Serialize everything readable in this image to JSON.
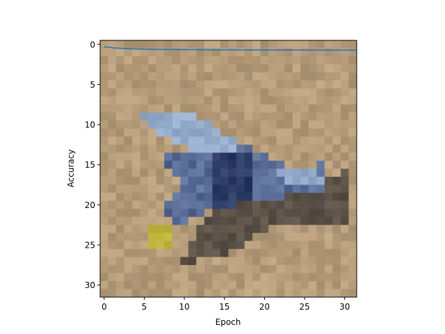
{
  "chart_data": {
    "type": "line",
    "xlabel": "Epoch",
    "ylabel": "Accuracy",
    "xlim": [
      -0.5,
      31.5
    ],
    "ylim": [
      31.5,
      -0.5
    ],
    "y_axis_inverted": true,
    "grid": false,
    "x_ticks": [
      0,
      5,
      10,
      15,
      20,
      25,
      30
    ],
    "y_ticks": [
      0,
      5,
      10,
      15,
      20,
      25,
      30
    ],
    "x_tick_labels": [
      "0",
      "5",
      "10",
      "15",
      "20",
      "25",
      "30"
    ],
    "y_tick_labels": [
      "0",
      "5",
      "10",
      "15",
      "20",
      "25",
      "30"
    ],
    "background_image": {
      "description": "pixelated 32x32 image of an airplane over a sandy background",
      "grid_size": [
        32,
        32
      ]
    },
    "series": [
      {
        "color": "#1f77b4",
        "x": [
          0,
          1,
          2,
          3,
          4,
          5,
          6,
          7,
          8,
          9,
          10,
          11,
          12,
          13,
          14,
          15,
          16,
          17,
          18,
          19,
          20,
          21,
          22,
          23,
          24,
          25,
          26,
          27,
          28,
          29,
          30,
          31,
          31.5
        ],
        "y": [
          0.3,
          0.42,
          0.5,
          0.55,
          0.58,
          0.6,
          0.62,
          0.63,
          0.64,
          0.65,
          0.66,
          0.66,
          0.67,
          0.67,
          0.68,
          0.68,
          0.68,
          0.69,
          0.69,
          0.69,
          0.7,
          0.7,
          0.7,
          0.7,
          0.7,
          0.71,
          0.71,
          0.71,
          0.71,
          0.72,
          0.72,
          0.72,
          0.72
        ]
      }
    ]
  }
}
